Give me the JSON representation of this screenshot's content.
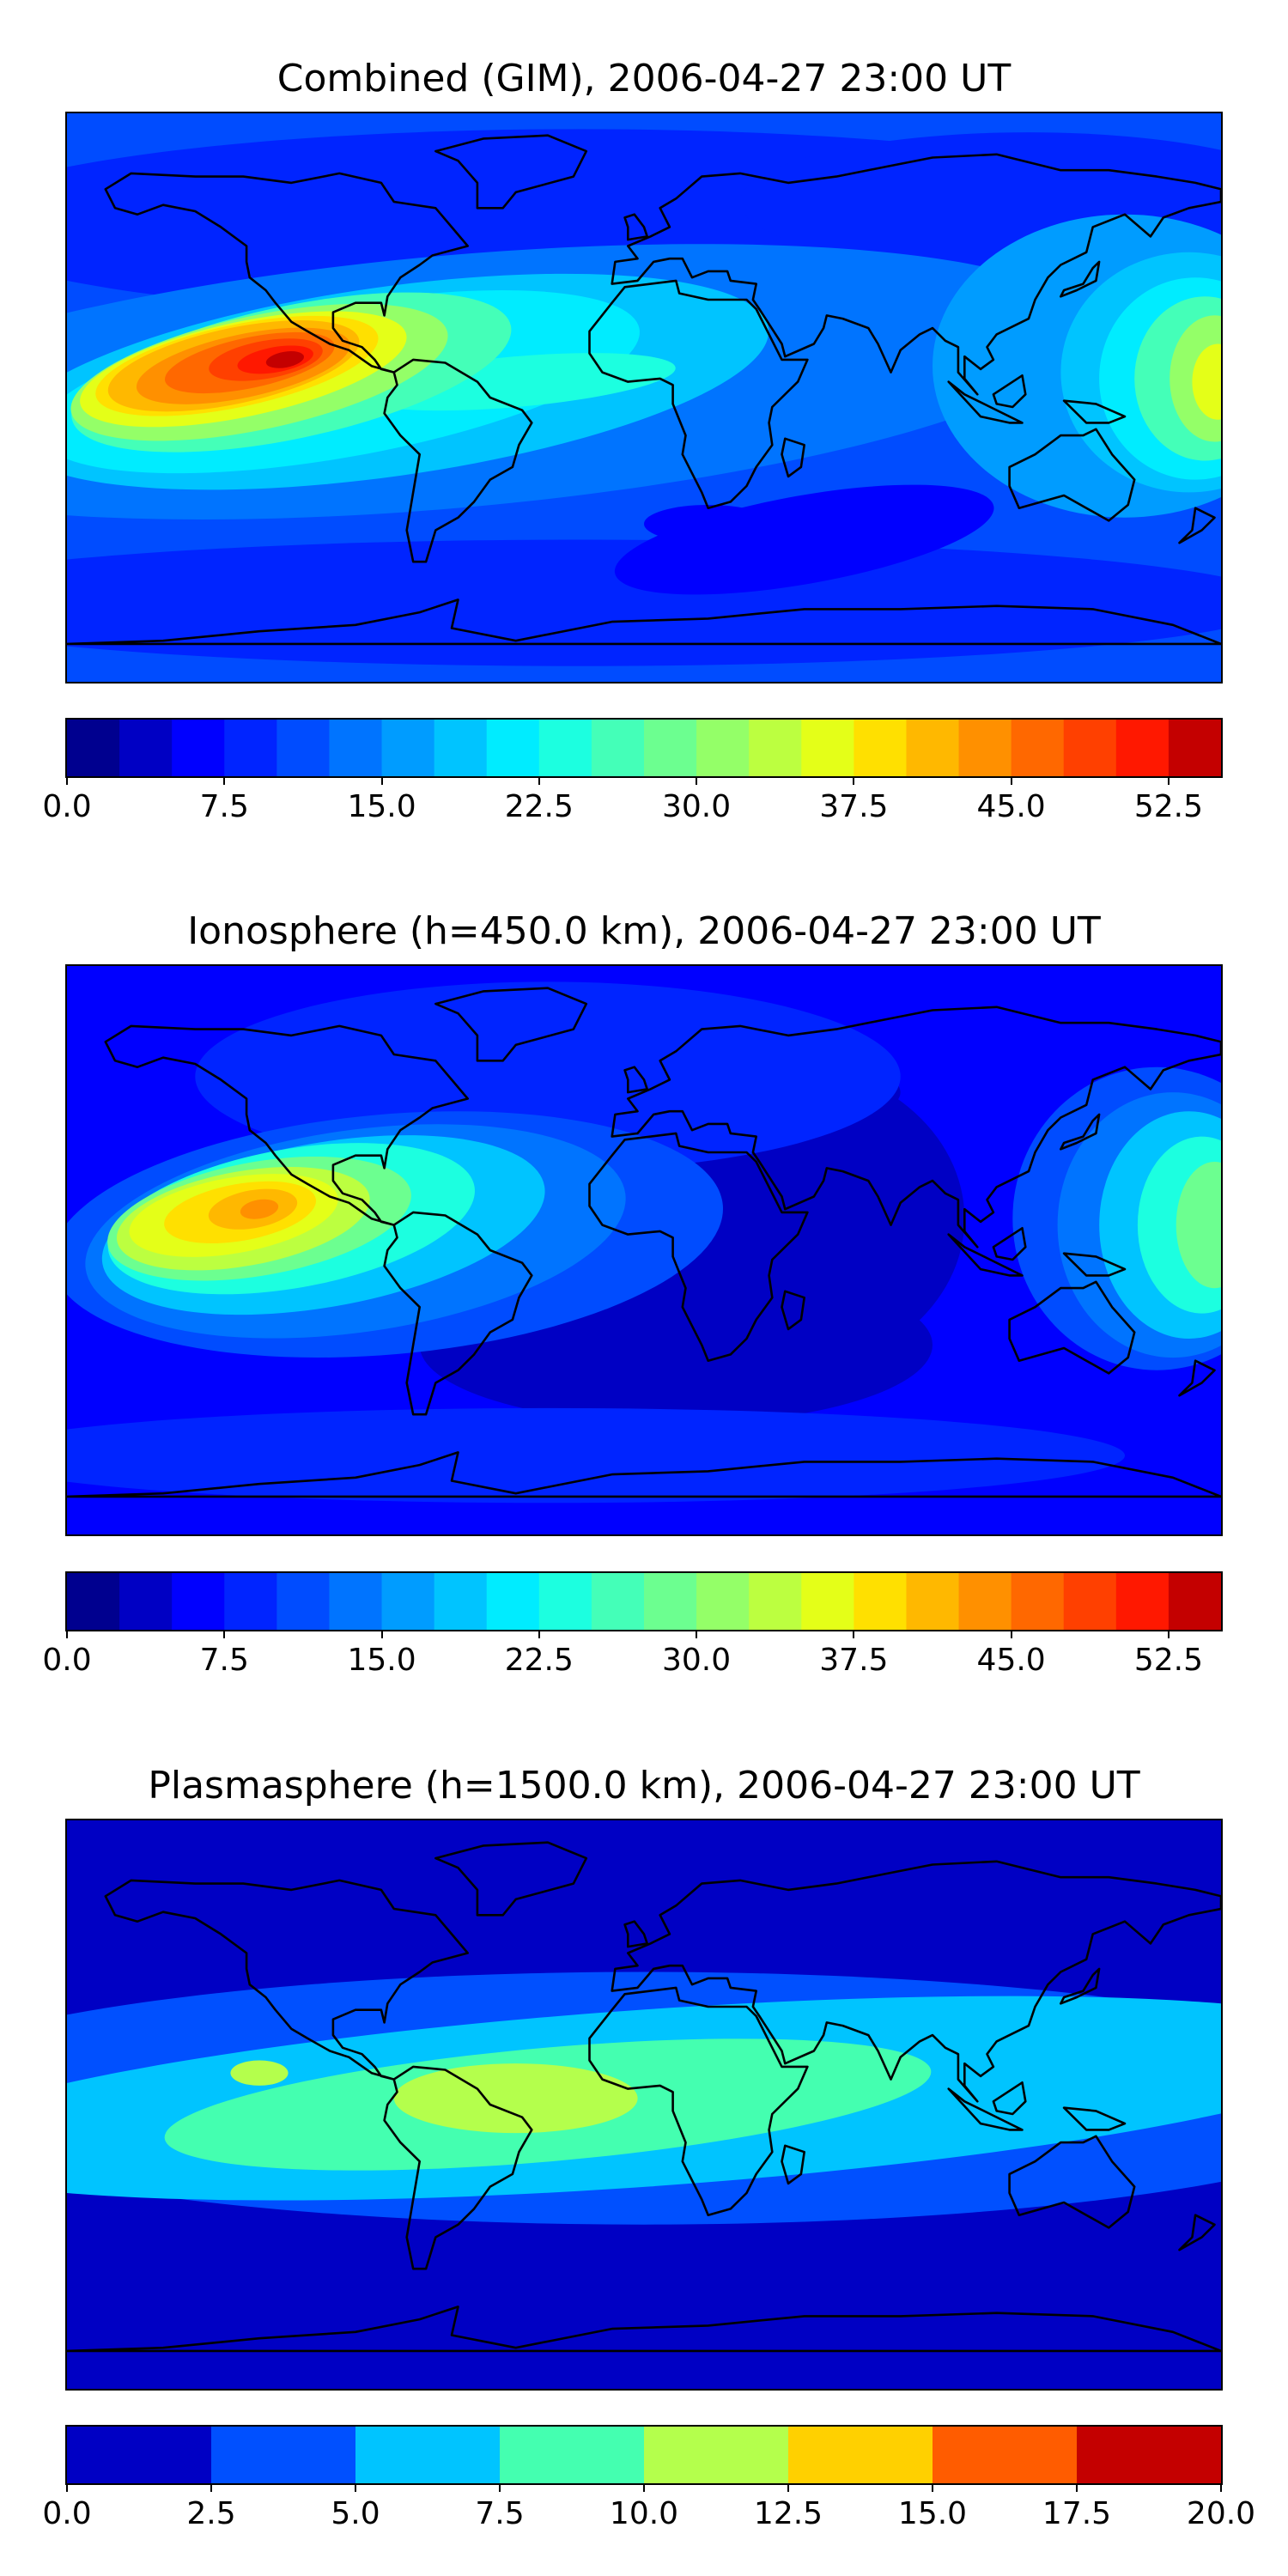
{
  "chart_data": [
    {
      "type": "heatmap",
      "title": "Combined (GIM), 2006-04-27 23:00 UT",
      "colorbar": {
        "levels": [
          0,
          2.5,
          5,
          7.5,
          10,
          12.5,
          15,
          17.5,
          20,
          22.5,
          25,
          27.5,
          30,
          32.5,
          35,
          37.5,
          40,
          42.5,
          45,
          47.5,
          50,
          52.5,
          55
        ],
        "colors": [
          "#00008f",
          "#0000c4",
          "#0000ff",
          "#0024ff",
          "#004cff",
          "#0074ff",
          "#009cff",
          "#00c4ff",
          "#00ecff",
          "#1cffe0",
          "#44ffb8",
          "#6cff90",
          "#94ff68",
          "#bcff40",
          "#e4ff18",
          "#ffe000",
          "#ffb800",
          "#ff9000",
          "#ff6800",
          "#ff4000",
          "#ff1800",
          "#c40000"
        ],
        "tick_labels": [
          "0.0",
          "7.5",
          "15.0",
          "22.5",
          "30.0",
          "37.5",
          "45.0",
          "52.5"
        ]
      },
      "background_level": 4,
      "features": [
        {
          "lon": -120,
          "lat": 8,
          "level": 21,
          "note": "maximum over eastern Pacific west of Central America"
        },
        {
          "lon": 178,
          "lat": 5,
          "level": 14,
          "note": "secondary enhancement over western Pacific"
        },
        {
          "lon": -15,
          "lat": 2,
          "level": 10,
          "note": "tongue extending across equatorial Atlantic"
        },
        {
          "lon": 60,
          "lat": -40,
          "level": 2,
          "note": "low in southern Indian Ocean"
        }
      ]
    },
    {
      "type": "heatmap",
      "title": "Ionosphere  (h=450.0 km), 2006-04-27 23:00 UT",
      "colorbar": {
        "levels": [
          0,
          2.5,
          5,
          7.5,
          10,
          12.5,
          15,
          17.5,
          20,
          22.5,
          25,
          27.5,
          30,
          32.5,
          35,
          37.5,
          40,
          42.5,
          45,
          47.5,
          50,
          52.5,
          55
        ],
        "colors": [
          "#00008f",
          "#0000c4",
          "#0000ff",
          "#0024ff",
          "#004cff",
          "#0074ff",
          "#009cff",
          "#00c4ff",
          "#00ecff",
          "#1cffe0",
          "#44ffb8",
          "#6cff90",
          "#94ff68",
          "#bcff40",
          "#e4ff18",
          "#ffe000",
          "#ffb800",
          "#ff9000",
          "#ff6800",
          "#ff4000",
          "#ff1800",
          "#c40000"
        ],
        "tick_labels": [
          "0.0",
          "7.5",
          "15.0",
          "22.5",
          "30.0",
          "37.5",
          "45.0",
          "52.5"
        ]
      },
      "background_level": 2,
      "features": [
        {
          "lon": -128,
          "lat": 12,
          "level": 17,
          "note": "maximum over eastern Pacific"
        },
        {
          "lon": 178,
          "lat": 8,
          "level": 11,
          "note": "western Pacific enhancement"
        },
        {
          "lon": 50,
          "lat": 0,
          "level": 1,
          "note": "minimum over Africa / Indian Ocean"
        }
      ]
    },
    {
      "type": "heatmap",
      "title": "Plasmasphere (h=1500.0 km), 2006-04-27 23:00 UT",
      "colorbar": {
        "levels": [
          0,
          2.5,
          5,
          7.5,
          10,
          12.5,
          15,
          17.5,
          20
        ],
        "colors": [
          "#0000c4",
          "#0050ff",
          "#00c4ff",
          "#44ffb0",
          "#b4ff4c",
          "#ffd000",
          "#ff5c00",
          "#c40000"
        ],
        "tick_labels": [
          "0.0",
          "2.5",
          "5.0",
          "7.5",
          "10.0",
          "12.5",
          "15.0",
          "17.5",
          "20.0"
        ]
      },
      "background_level": 0,
      "features": [
        {
          "lon": 0,
          "lat": 0,
          "level": 2,
          "note": "broad equatorial band 5.0-7.5"
        },
        {
          "lon": -10,
          "lat": 0,
          "level": 3,
          "note": "band 7.5-10.0 across Atlantic and Africa"
        },
        {
          "lon": -40,
          "lat": -2,
          "level": 4,
          "note": "band 10.0-12.5 over South Atlantic / Brazil"
        }
      ]
    }
  ]
}
